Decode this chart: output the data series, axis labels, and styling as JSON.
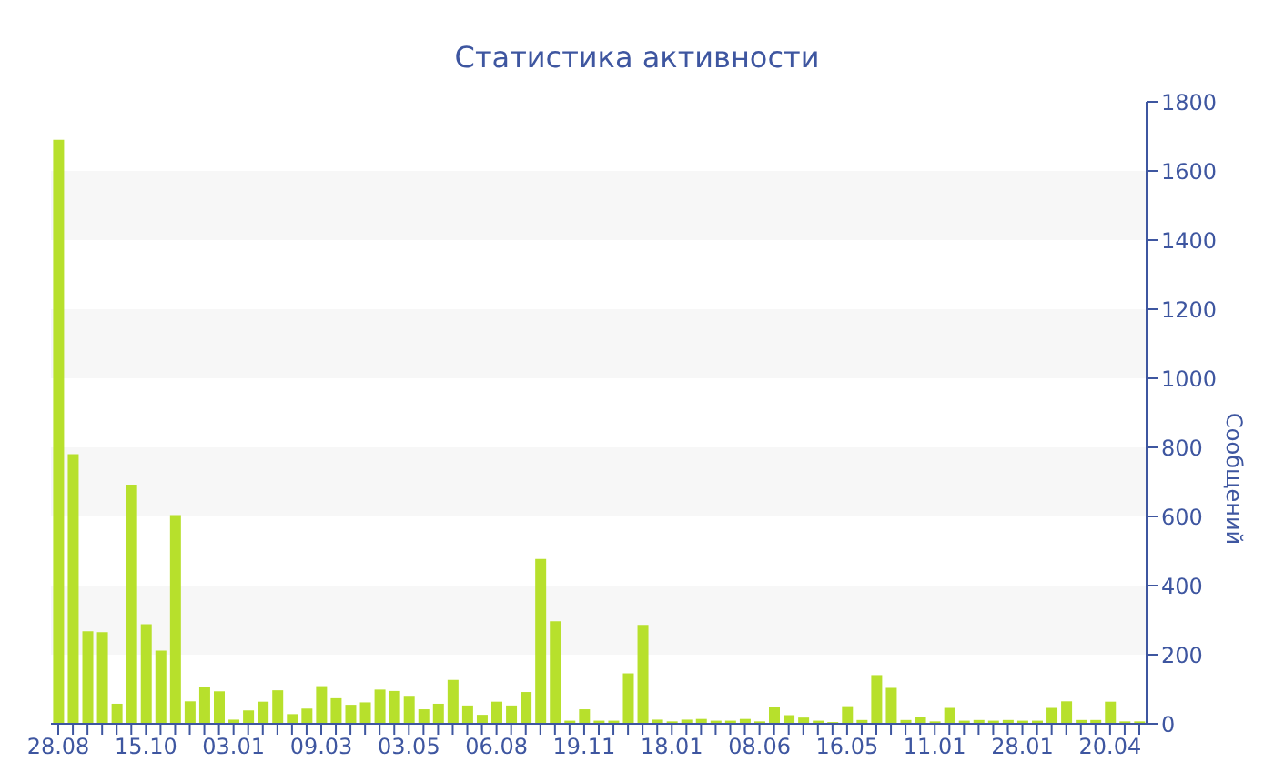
{
  "chart_data": {
    "type": "bar",
    "title": "Статистика активности",
    "ylabel": "Сообщений",
    "categories": [
      "28.08",
      null,
      null,
      null,
      null,
      null,
      "15.10",
      null,
      null,
      null,
      null,
      null,
      "03.01",
      null,
      null,
      null,
      null,
      null,
      "09.03",
      null,
      null,
      null,
      null,
      null,
      "03.05",
      null,
      null,
      null,
      null,
      null,
      "06.08",
      null,
      null,
      null,
      null,
      null,
      "19.11",
      null,
      null,
      null,
      null,
      null,
      "18.01",
      null,
      null,
      null,
      null,
      null,
      "08.06",
      null,
      null,
      null,
      null,
      null,
      "16.05",
      null,
      null,
      null,
      null,
      null,
      "11.01",
      null,
      null,
      null,
      null,
      null,
      "28.01",
      null,
      null,
      null,
      null,
      null,
      "20.04",
      null,
      null
    ],
    "values": [
      1690,
      780,
      268,
      265,
      58,
      692,
      288,
      212,
      604,
      65,
      106,
      94,
      12,
      39,
      64,
      97,
      28,
      44,
      109,
      74,
      55,
      62,
      99,
      95,
      81,
      42,
      58,
      127,
      53,
      26,
      64,
      53,
      92,
      477,
      297,
      9,
      42,
      9,
      9,
      146,
      286,
      12,
      7,
      12,
      14,
      9,
      9,
      14,
      7,
      49,
      25,
      18,
      9,
      5,
      51,
      11,
      141,
      104,
      11,
      21,
      7,
      46,
      9,
      11,
      9,
      11,
      9,
      9,
      46,
      65,
      11,
      11,
      64,
      7,
      7
    ],
    "color": "#b7e02c",
    "ylim": [
      0,
      1800
    ],
    "yticks": [
      0,
      200,
      400,
      600,
      800,
      1000,
      1200,
      1400,
      1600,
      1800
    ],
    "grid": false,
    "bands": [
      {
        "axis": "y",
        "from": 200,
        "to": 400,
        "color": "#f7f7f7"
      },
      {
        "axis": "y",
        "from": 600,
        "to": 800,
        "color": "#f7f7f7"
      },
      {
        "axis": "y",
        "from": 1000,
        "to": 1200,
        "color": "#f7f7f7"
      },
      {
        "axis": "y",
        "from": 1400,
        "to": 1600,
        "color": "#f7f7f7"
      }
    ]
  }
}
